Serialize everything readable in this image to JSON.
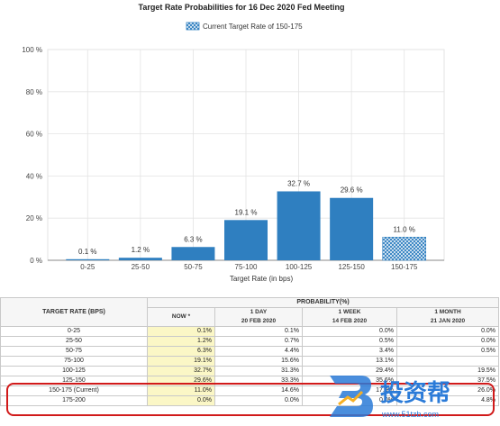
{
  "chart_data": {
    "type": "bar",
    "title": "Target Rate Probabilities for 16 Dec 2020 Fed Meeting",
    "legend": "Current Target Rate of 150-175",
    "xlabel": "Target Rate (in bps)",
    "ylabel": "",
    "yticks": [
      "0 %",
      "20 %",
      "40 %",
      "60 %",
      "80 %",
      "100 %"
    ],
    "ylim": [
      0,
      100
    ],
    "categories": [
      "0-25",
      "25-50",
      "50-75",
      "75-100",
      "100-125",
      "125-150",
      "150-175"
    ],
    "values": [
      0.1,
      1.2,
      6.3,
      19.1,
      32.7,
      29.6,
      11.0
    ],
    "value_labels": [
      "0.1 %",
      "1.2 %",
      "6.3 %",
      "19.1 %",
      "32.7 %",
      "29.6 %",
      "11.0 %"
    ],
    "current_category": "150-175",
    "grid": true,
    "legend_position": "top-center"
  },
  "colors": {
    "bar": "#2f7fc0",
    "current_bar": "#7fa9d4",
    "grid": "#e3e3e3",
    "highlight": "#d11a1a",
    "now_col": "#fbf7c6"
  },
  "table": {
    "col_target": "TARGET RATE (BPS)",
    "col_prob": "PROBABILITY(%)",
    "col_now": "NOW *",
    "col_1day": "1 DAY",
    "col_1day_date": "20 FEB 2020",
    "col_1week": "1 WEEK",
    "col_1week_date": "14 FEB 2020",
    "col_1month": "1 MONTH",
    "col_1month_date": "21 JAN 2020",
    "rows": [
      {
        "rate": "0-25",
        "now": "0.1%",
        "d1": "0.1%",
        "w1": "0.0%",
        "m1": "0.0%"
      },
      {
        "rate": "25-50",
        "now": "1.2%",
        "d1": "0.7%",
        "w1": "0.5%",
        "m1": "0.0%"
      },
      {
        "rate": "50-75",
        "now": "6.3%",
        "d1": "4.4%",
        "w1": "3.4%",
        "m1": "0.5%"
      },
      {
        "rate": "75-100",
        "now": "19.1%",
        "d1": "15.6%",
        "w1": "13.1%",
        "m1": ""
      },
      {
        "rate": "100-125",
        "now": "32.7%",
        "d1": "31.3%",
        "w1": "29.4%",
        "m1": "19.5%"
      },
      {
        "rate": "125-150",
        "now": "29.6%",
        "d1": "33.3%",
        "w1": "35.6%",
        "m1": "37.5%"
      },
      {
        "rate": "150-175 (Current)",
        "now": "11.0%",
        "d1": "14.6%",
        "w1": "17.9%",
        "m1": "26.0%"
      },
      {
        "rate": "175-200",
        "now": "0.0%",
        "d1": "0.0%",
        "w1": "0.0%",
        "m1": "4.8%"
      }
    ]
  },
  "watermark": {
    "brand": "投资帮",
    "url": "www.51tzb.com"
  }
}
